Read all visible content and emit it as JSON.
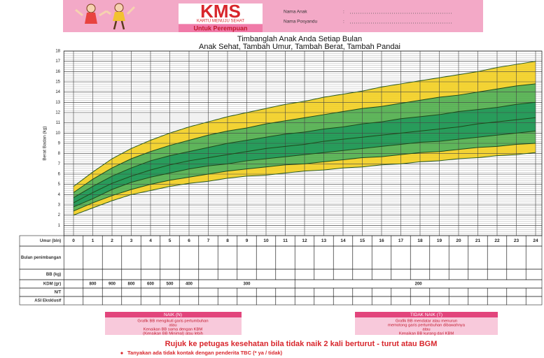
{
  "header": {
    "brand": "KMS",
    "tagline": "KARTU MENUJU SEHAT",
    "subtitle": "Untuk Perempuan",
    "separator": ":",
    "fields": [
      "Nama Anak",
      "Nama Posyandu"
    ]
  },
  "chart_data": {
    "type": "growth-bands",
    "title": "Timbanglah Anak Anda Setiap Bulan",
    "subtitle": "Anak Sehat, Tambah Umur, Tambah Berat, Tambah Pandai",
    "y_label": "Berat Badan (kg)",
    "x": [
      0,
      1,
      2,
      3,
      4,
      5,
      6,
      7,
      8,
      9,
      10,
      11,
      12,
      13,
      14,
      15,
      16,
      17,
      18,
      19,
      20,
      21,
      22,
      23,
      24
    ],
    "xlim": [
      0,
      24
    ],
    "xticks": [
      0,
      1,
      2,
      3,
      4,
      5,
      6,
      7,
      8,
      9,
      10,
      11,
      12,
      13,
      14,
      15,
      16,
      17,
      18,
      19,
      20,
      21,
      22,
      23,
      24
    ],
    "ylim": [
      0,
      18
    ],
    "yticks": [
      1,
      2,
      3,
      4,
      5,
      6,
      7,
      8,
      9,
      10,
      11,
      12,
      13,
      14,
      15,
      16,
      17,
      18
    ],
    "grid": true,
    "band_fills": [
      "#f3cf1f",
      "#4fae4a",
      "#12924a",
      "#12924a",
      "#4fae4a",
      "#f3cf1f"
    ],
    "series": [
      {
        "color": "#2a5a20",
        "values": [
          2.0,
          2.7,
          3.4,
          4.0,
          4.4,
          4.8,
          5.1,
          5.3,
          5.6,
          5.8,
          5.9,
          6.1,
          6.3,
          6.4,
          6.6,
          6.7,
          6.9,
          7.0,
          7.2,
          7.3,
          7.5,
          7.6,
          7.8,
          7.9,
          8.1
        ]
      },
      {
        "color": "#1d4a1a",
        "values": [
          2.4,
          3.2,
          3.9,
          4.5,
          5.0,
          5.4,
          5.7,
          6.0,
          6.3,
          6.5,
          6.7,
          6.9,
          7.0,
          7.2,
          7.4,
          7.6,
          7.7,
          7.9,
          8.1,
          8.2,
          8.4,
          8.6,
          8.7,
          8.9,
          9.0
        ]
      },
      {
        "color": "#1d4a1a",
        "values": [
          2.8,
          3.6,
          4.5,
          5.2,
          5.7,
          6.1,
          6.5,
          6.8,
          7.0,
          7.3,
          7.5,
          7.7,
          7.9,
          8.1,
          8.3,
          8.5,
          8.7,
          8.9,
          9.1,
          9.2,
          9.4,
          9.6,
          9.8,
          10.0,
          10.2
        ]
      },
      {
        "color": "#1d4a1a",
        "values": [
          3.2,
          4.2,
          5.1,
          5.8,
          6.4,
          6.9,
          7.3,
          7.6,
          7.9,
          8.2,
          8.5,
          8.7,
          8.9,
          9.2,
          9.4,
          9.6,
          9.8,
          10.0,
          10.2,
          10.4,
          10.6,
          10.9,
          11.1,
          11.3,
          11.5
        ]
      },
      {
        "color": "#1d4a1a",
        "values": [
          3.7,
          4.8,
          5.8,
          6.6,
          7.3,
          7.8,
          8.2,
          8.6,
          9.0,
          9.3,
          9.6,
          9.9,
          10.1,
          10.4,
          10.6,
          10.9,
          11.1,
          11.4,
          11.6,
          11.8,
          12.1,
          12.3,
          12.5,
          12.8,
          13.0
        ]
      },
      {
        "color": "#1d4a1a",
        "values": [
          4.2,
          5.5,
          6.6,
          7.5,
          8.2,
          8.8,
          9.3,
          9.8,
          10.2,
          10.5,
          10.9,
          11.2,
          11.5,
          11.8,
          12.1,
          12.4,
          12.6,
          12.9,
          13.2,
          13.5,
          13.7,
          14.0,
          14.3,
          14.6,
          14.8
        ]
      },
      {
        "color": "#2a5a20",
        "values": [
          4.8,
          6.2,
          7.5,
          8.5,
          9.3,
          10.0,
          10.6,
          11.1,
          11.6,
          12.0,
          12.4,
          12.8,
          13.1,
          13.5,
          13.8,
          14.1,
          14.5,
          14.8,
          15.1,
          15.4,
          15.7,
          16.0,
          16.4,
          16.7,
          17.0
        ]
      }
    ]
  },
  "table": {
    "row_labels": [
      "Umur (bln)",
      "Bulan penimbangan",
      "BB (kg)",
      "KDM (gr)",
      "N/T",
      "ASI Eksklusif"
    ],
    "kdm": [
      null,
      "800",
      "900",
      "800",
      "600",
      "500",
      "400",
      "300",
      null,
      null,
      null,
      null,
      "200",
      null,
      null,
      null,
      null,
      null,
      null,
      null,
      null,
      null,
      null,
      null,
      null
    ]
  },
  "notes": {
    "naik": {
      "title": "NAIK (N)",
      "lines": [
        "Grafik BB mengikuti garis pertumbuhan",
        "atau",
        "Kenaikan BB sama dengan KBM",
        "(Kenaikan BB Minimal) atau lebih"
      ]
    },
    "tidak_naik": {
      "title": "TIDAK NAIK (T)",
      "lines": [
        "Grafik BB mendatar atau menurun",
        "memotong garis pertumbuhan dibawahnya",
        "atau",
        "Kenaikan BB kurang dari KBM"
      ]
    },
    "referral": "Rujuk ke petugas kesehatan bila tidak naik 2 kali berturut - turut atau BGM",
    "question": "Tanyakan ada tidak kontak dengan penderita TBC (* ya / tidak)"
  }
}
